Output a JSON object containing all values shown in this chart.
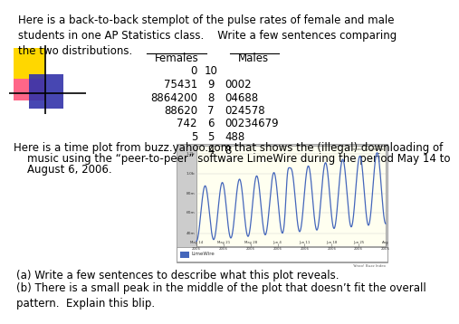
{
  "title_text": "Here is a back-to-back stemplot of the pulse rates of female and male\nstudents in one AP Statistics class.    Write a few sentences comparing\nthe two distributions.",
  "header_females": "Females",
  "header_males": "Males",
  "rows_display": [
    [
      "0",
      "10",
      ""
    ],
    [
      "75431",
      "9",
      "0002"
    ],
    [
      "8864200",
      "8",
      "04688"
    ],
    [
      "88620",
      "7",
      "024578"
    ],
    [
      "742",
      "6",
      "00234679"
    ],
    [
      "5",
      "5",
      "488"
    ],
    [
      "",
      "4",
      "8"
    ]
  ],
  "time_plot_text1": "Here is a time plot from buzz.yahoo.com that shows the (illegal) downloading of",
  "time_plot_text2": "    music using the “peer-to-peer” software LimeWire during the period May 14 to",
  "time_plot_text3": "    August 6, 2006.",
  "question_a": "(a) Write a few sentences to describe what this plot reveals.",
  "question_b": "(b) There is a small peak in the middle of the plot that doesn’t fit the overall\npattern.  Explain this blip.",
  "bg_color": "#ffffff",
  "text_color": "#000000",
  "chart_bg": "#FFFFF0",
  "chart_border": "#999999",
  "wave_color": "#4466BB",
  "yellow_color": "#FFD700",
  "pink_color": "#FF6688",
  "blue_color": "#3333AA"
}
